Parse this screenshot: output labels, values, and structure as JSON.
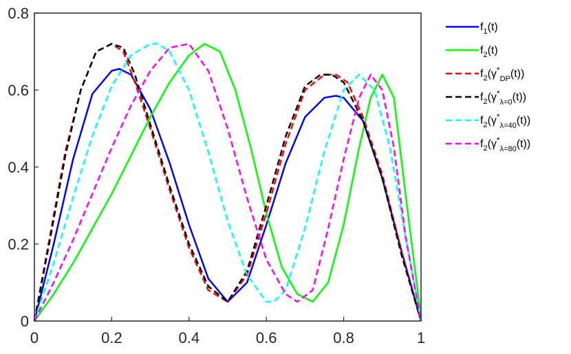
{
  "chart_data": {
    "type": "line",
    "title": "",
    "xlabel": "",
    "ylabel": "",
    "xlim": [
      0,
      1
    ],
    "ylim": [
      0,
      0.8
    ],
    "xticks": [
      "0",
      "0.2",
      "0.4",
      "0.6",
      "0.8",
      "1"
    ],
    "yticks": [
      "0",
      "0.2",
      "0.4",
      "0.6",
      "0.8"
    ],
    "grid": false,
    "legend_position": "right",
    "series": [
      {
        "name": "f1(t)",
        "legend": {
          "base": "f",
          "sub1": "1",
          "mid": "(t)",
          "sup": "",
          "sub2": "",
          "tail": ""
        },
        "color": "#0000ff",
        "dash": false,
        "x": [
          0,
          0.05,
          0.1,
          0.15,
          0.2,
          0.22,
          0.25,
          0.3,
          0.35,
          0.4,
          0.45,
          0.5,
          0.55,
          0.6,
          0.65,
          0.7,
          0.75,
          0.78,
          0.8,
          0.85,
          0.9,
          0.95,
          1
        ],
        "y": [
          0,
          0.2,
          0.42,
          0.59,
          0.65,
          0.655,
          0.64,
          0.55,
          0.41,
          0.25,
          0.11,
          0.05,
          0.1,
          0.25,
          0.41,
          0.53,
          0.58,
          0.585,
          0.58,
          0.52,
          0.37,
          0.18,
          0
        ]
      },
      {
        "name": "f2(t)",
        "legend": {
          "base": "f",
          "sub1": "2",
          "mid": "(t)",
          "sup": "",
          "sub2": "",
          "tail": ""
        },
        "color": "#00ff00",
        "dash": false,
        "x": [
          0,
          0.05,
          0.1,
          0.15,
          0.2,
          0.25,
          0.3,
          0.35,
          0.4,
          0.44,
          0.48,
          0.52,
          0.56,
          0.6,
          0.64,
          0.68,
          0.72,
          0.76,
          0.8,
          0.84,
          0.87,
          0.9,
          0.93,
          0.96,
          1
        ],
        "y": [
          0,
          0.07,
          0.15,
          0.24,
          0.33,
          0.43,
          0.53,
          0.62,
          0.69,
          0.72,
          0.7,
          0.6,
          0.45,
          0.28,
          0.14,
          0.07,
          0.05,
          0.1,
          0.25,
          0.45,
          0.58,
          0.64,
          0.58,
          0.33,
          0.01
        ]
      },
      {
        "name": "f2(γ*DP(t))",
        "legend": {
          "base": "f",
          "sub1": "2",
          "mid": "(γ",
          "sup": "*",
          "sub2": "DP",
          "tail": "(t))"
        },
        "color": "#ff0000",
        "dash": true,
        "x": [
          0,
          0.04,
          0.08,
          0.12,
          0.16,
          0.2,
          0.23,
          0.26,
          0.3,
          0.35,
          0.4,
          0.45,
          0.5,
          0.55,
          0.6,
          0.65,
          0.7,
          0.75,
          0.78,
          0.81,
          0.85,
          0.9,
          0.95,
          1
        ],
        "y": [
          0,
          0.22,
          0.44,
          0.6,
          0.7,
          0.72,
          0.7,
          0.62,
          0.5,
          0.34,
          0.19,
          0.08,
          0.05,
          0.12,
          0.28,
          0.46,
          0.6,
          0.64,
          0.64,
          0.62,
          0.53,
          0.38,
          0.18,
          0
        ]
      },
      {
        "name": "f2(γ*λ=0(t))",
        "legend": {
          "base": "f",
          "sub1": "2",
          "mid": "(γ",
          "sup": "*",
          "sub2": "λ=0",
          "tail": "(t))"
        },
        "color": "#000000",
        "dash": true,
        "x": [
          0,
          0.04,
          0.08,
          0.12,
          0.16,
          0.2,
          0.23,
          0.26,
          0.3,
          0.35,
          0.4,
          0.45,
          0.5,
          0.55,
          0.6,
          0.65,
          0.7,
          0.74,
          0.77,
          0.8,
          0.85,
          0.9,
          0.95,
          1
        ],
        "y": [
          0,
          0.21,
          0.43,
          0.6,
          0.7,
          0.72,
          0.71,
          0.64,
          0.51,
          0.35,
          0.2,
          0.09,
          0.05,
          0.13,
          0.3,
          0.48,
          0.61,
          0.64,
          0.64,
          0.62,
          0.52,
          0.37,
          0.17,
          0
        ]
      },
      {
        "name": "f2(γ*λ=40(t))",
        "legend": {
          "base": "f",
          "sub1": "2",
          "mid": "(γ",
          "sup": "*",
          "sub2": "λ=40",
          "tail": "(t))"
        },
        "color": "#00ffff",
        "dash": true,
        "x": [
          0,
          0.05,
          0.1,
          0.15,
          0.2,
          0.25,
          0.3,
          0.32,
          0.35,
          0.4,
          0.45,
          0.5,
          0.55,
          0.6,
          0.62,
          0.65,
          0.7,
          0.75,
          0.8,
          0.84,
          0.88,
          0.92,
          0.96,
          1
        ],
        "y": [
          0,
          0.15,
          0.32,
          0.48,
          0.61,
          0.69,
          0.72,
          0.72,
          0.7,
          0.6,
          0.44,
          0.26,
          0.12,
          0.05,
          0.05,
          0.08,
          0.24,
          0.44,
          0.6,
          0.64,
          0.6,
          0.45,
          0.22,
          0
        ]
      },
      {
        "name": "f2(γ*λ=80(t))",
        "legend": {
          "base": "f",
          "sub1": "2",
          "mid": "(γ",
          "sup": "*",
          "sub2": "λ=80",
          "tail": "(t))"
        },
        "color": "#ff00ff",
        "dash": true,
        "x": [
          0,
          0.05,
          0.1,
          0.15,
          0.2,
          0.25,
          0.3,
          0.35,
          0.4,
          0.45,
          0.5,
          0.55,
          0.6,
          0.65,
          0.68,
          0.72,
          0.76,
          0.8,
          0.84,
          0.87,
          0.9,
          0.93,
          0.96,
          1
        ],
        "y": [
          0,
          0.1,
          0.21,
          0.33,
          0.45,
          0.56,
          0.65,
          0.71,
          0.72,
          0.65,
          0.5,
          0.32,
          0.16,
          0.07,
          0.05,
          0.08,
          0.24,
          0.42,
          0.58,
          0.64,
          0.6,
          0.45,
          0.22,
          0
        ]
      }
    ]
  }
}
